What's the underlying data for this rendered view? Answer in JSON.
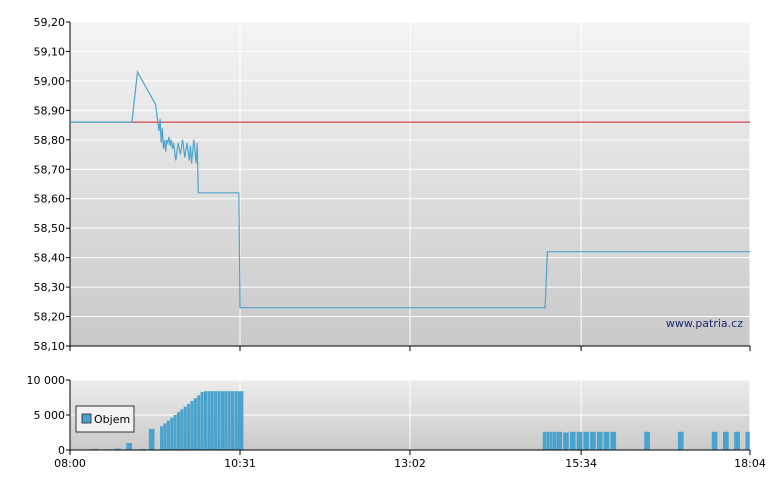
{
  "watermark": "www.patria.cz",
  "legend": {
    "volume_label": "Objem"
  },
  "colors": {
    "price_line": "#4ea4cc",
    "reference_line": "#cc2222",
    "volume_bar": "#4aa3cc",
    "grid": "#ffffff"
  },
  "chart_data": [
    {
      "type": "line",
      "title": "",
      "ylim": [
        58.1,
        59.2
      ],
      "y_ticks": [
        "59,20",
        "59,10",
        "59,00",
        "58,90",
        "58,80",
        "58,70",
        "58,60",
        "58,50",
        "58,40",
        "58,30",
        "58,20",
        "58,10"
      ],
      "x_range": [
        "08:00",
        "18:04"
      ],
      "reference_value": 58.86,
      "series": [
        {
          "x": [
            "08:00",
            "08:55",
            "09:00",
            "09:16",
            "09:18",
            "09:19",
            "09:20",
            "09:21",
            "09:22",
            "09:23",
            "09:24",
            "09:25",
            "09:26",
            "09:27",
            "09:28",
            "09:29",
            "09:30",
            "09:31",
            "09:32",
            "09:33",
            "09:34",
            "09:36",
            "09:38",
            "09:40",
            "09:42",
            "09:44",
            "09:46",
            "09:47",
            "09:48",
            "09:50",
            "09:52",
            "09:53",
            "09:54",
            "09:55",
            "09:56",
            "10:30",
            "10:31",
            "15:02",
            "15:04",
            "18:04"
          ],
          "values": [
            58.86,
            58.86,
            59.03,
            58.92,
            58.86,
            58.83,
            58.87,
            58.79,
            58.84,
            58.77,
            58.8,
            58.76,
            58.8,
            58.79,
            58.81,
            58.78,
            58.8,
            58.77,
            58.79,
            58.76,
            58.73,
            58.79,
            58.75,
            58.8,
            58.74,
            58.79,
            58.73,
            58.78,
            58.72,
            58.8,
            58.72,
            58.79,
            58.62,
            58.62,
            58.62,
            58.62,
            58.23,
            58.23,
            58.42,
            58.42
          ]
        }
      ]
    },
    {
      "type": "bar",
      "title": "",
      "ylim": [
        0,
        10000
      ],
      "y_ticks": [
        "10 000",
        "5 000",
        "0"
      ],
      "x_ticks": [
        "08:00",
        "10:31",
        "13:02",
        "15:34",
        "18:04"
      ],
      "series": [
        {
          "name": "Objem",
          "x": [
            "08:20",
            "08:30",
            "08:40",
            "08:50",
            "09:02",
            "09:10",
            "09:20",
            "09:23",
            "09:26",
            "09:29",
            "09:32",
            "09:35",
            "09:38",
            "09:41",
            "09:44",
            "09:47",
            "09:50",
            "09:53",
            "09:56",
            "09:59",
            "10:02",
            "10:05",
            "10:08",
            "10:11",
            "10:14",
            "10:17",
            "10:20",
            "10:23",
            "10:26",
            "10:29",
            "15:00",
            "15:03",
            "15:06",
            "15:09",
            "15:12",
            "15:18",
            "15:24",
            "15:30",
            "15:36",
            "15:42",
            "15:48",
            "15:54",
            "16:00",
            "16:30",
            "17:00",
            "17:30",
            "17:40",
            "17:50",
            "18:00"
          ],
          "values": [
            150,
            100,
            200,
            1000,
            150,
            3000,
            3400,
            3800,
            4200,
            4600,
            5000,
            5400,
            5800,
            6200,
            6600,
            7000,
            7400,
            7800,
            8300,
            8400,
            8400,
            8400,
            8400,
            8400,
            8400,
            8400,
            8400,
            8400,
            8400,
            8400,
            2600,
            2600,
            2600,
            2600,
            2600,
            2500,
            2600,
            2600,
            2600,
            2600,
            2600,
            2600,
            2600,
            2600,
            2600,
            2600,
            2600,
            2600,
            2600
          ]
        }
      ]
    }
  ]
}
